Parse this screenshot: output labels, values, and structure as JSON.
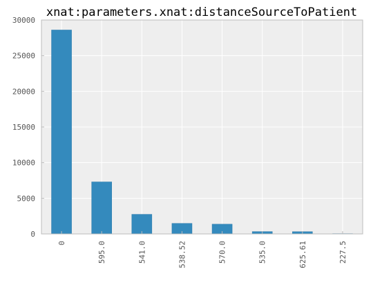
{
  "chart_data": {
    "type": "bar",
    "title": "xnat:parameters.xnat:distanceSourceToPatient",
    "xlabel": "",
    "ylabel": "",
    "categories": [
      "0",
      "595.0",
      "541.0",
      "538.52",
      "570.0",
      "535.0",
      "625.61",
      "227.5"
    ],
    "values": [
      28600,
      7300,
      2750,
      1480,
      1370,
      330,
      320,
      40
    ],
    "ylim": [
      0,
      30000
    ],
    "yticks": [
      "0",
      "5000",
      "10000",
      "15000",
      "20000",
      "25000",
      "30000"
    ],
    "grid": true,
    "legend": "none",
    "colors": {
      "bar": "#348abd",
      "plot_background": "#eeeeee",
      "grid": "#ffffff",
      "axes_edge": "#bcbcbc"
    }
  }
}
